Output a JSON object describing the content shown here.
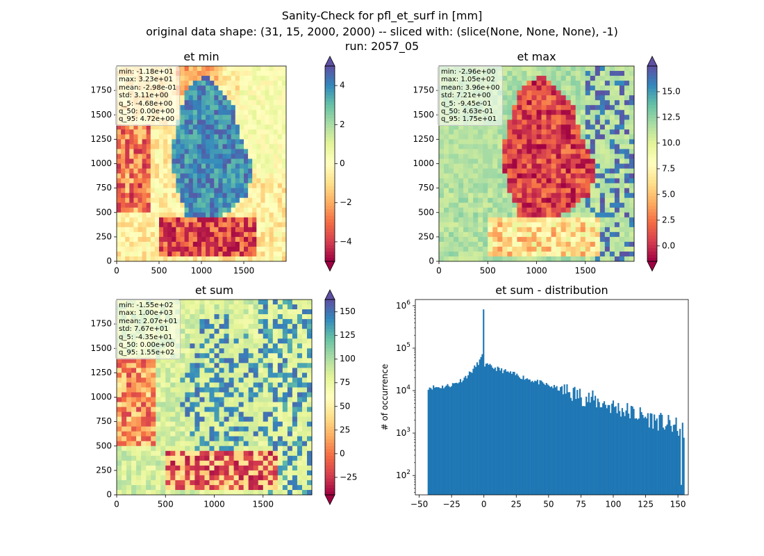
{
  "figure": {
    "suptitle": [
      "Sanity-Check for pfl_et_surf in [mm]",
      "original data shape: (31, 15, 2000, 2000) -- sliced with: (slice(None, None, None), -1)",
      "run: 2057_05"
    ]
  },
  "colors": {
    "histogram_bar": "#1f77b4",
    "axis": "#000000"
  },
  "chart_data": [
    {
      "type": "heatmap",
      "title": "et min",
      "colormap": "Spectral",
      "x_ticks": [
        0,
        500,
        1000,
        1500
      ],
      "y_ticks": [
        0,
        250,
        500,
        750,
        1000,
        1250,
        1500,
        1750
      ],
      "xlim": [
        0,
        2000
      ],
      "ylim": [
        0,
        2000
      ],
      "colorbar": {
        "range": [
          -5,
          5
        ],
        "ticks": [
          -4,
          -2,
          0,
          2,
          4
        ],
        "extend": "both"
      },
      "stats": [
        "min: -1.18e+01",
        "max: 3.23e+01",
        "mean: -2.98e-01",
        "std: 3.11e+00",
        "q_5: -4.68e+00",
        "q_50: 0.00e+00",
        "q_95: 4.72e+00"
      ]
    },
    {
      "type": "heatmap",
      "title": "et max",
      "colormap": "Spectral",
      "x_ticks": [
        0,
        500,
        1000,
        1500
      ],
      "y_ticks": [
        0,
        250,
        500,
        750,
        1000,
        1250,
        1500,
        1750
      ],
      "xlim": [
        0,
        2000
      ],
      "ylim": [
        0,
        2000
      ],
      "colorbar": {
        "range": [
          -1.5,
          17.5
        ],
        "ticks": [
          0.0,
          2.5,
          5.0,
          7.5,
          10.0,
          12.5,
          15.0
        ],
        "tick_labels": [
          "0.0",
          "2.5",
          "5.0",
          "7.5",
          "10.0",
          "12.5",
          "15.0"
        ],
        "extend": "both"
      },
      "stats": [
        "min: -2.96e+00",
        "max: 1.05e+02",
        "mean: 3.96e+00",
        "std: 7.21e+00",
        "q_5: -9.45e-01",
        "q_50: 4.63e-01",
        "q_95: 1.75e+01"
      ]
    },
    {
      "type": "heatmap",
      "title": "et sum",
      "colormap": "Spectral",
      "x_ticks": [
        0,
        500,
        1000,
        1500
      ],
      "y_ticks": [
        0,
        250,
        500,
        750,
        1000,
        1250,
        1500,
        1750
      ],
      "xlim": [
        0,
        2000
      ],
      "ylim": [
        0,
        2000
      ],
      "colorbar": {
        "range": [
          -43.5,
          163
        ],
        "ticks": [
          -25,
          0,
          25,
          50,
          75,
          100,
          125,
          150
        ],
        "extend": "both"
      },
      "stats": [
        "min: -1.55e+02",
        "max: 1.00e+03",
        "mean: 2.07e+01",
        "std: 7.67e+01",
        "q_5: -4.35e+01",
        "q_50: 0.00e+00",
        "q_95: 1.55e+02"
      ]
    },
    {
      "type": "bar",
      "title": "et sum - distribution",
      "ylabel": "# of occurrence",
      "yscale": "log",
      "xlim": [
        -53,
        158
      ],
      "ylim": [
        35,
        1400000
      ],
      "x_ticks": [
        -50,
        -25,
        0,
        25,
        50,
        75,
        100,
        125,
        150
      ],
      "y_ticks": [
        100,
        1000,
        10000,
        100000,
        1000000
      ],
      "y_tick_labels": [
        "10^2",
        "10^3",
        "10^4",
        "10^5",
        "10^6"
      ],
      "histogram": {
        "x_start": -43.5,
        "x_end": 155,
        "spike": {
          "x": 0,
          "value": 820000
        },
        "peak_near_zero": 75000,
        "left_edge_value": 12000,
        "right_edge_value": 1200
      }
    }
  ]
}
